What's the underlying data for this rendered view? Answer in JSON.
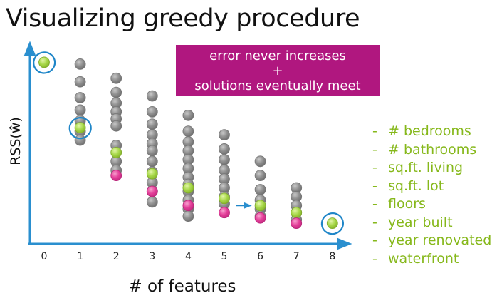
{
  "title": "Visualizing greedy procedure",
  "callout": {
    "line1": "error never increases",
    "line2": "+",
    "line3": "solutions eventually meet"
  },
  "features": [
    "# bedrooms",
    "# bathrooms",
    "sq.ft. living",
    "sq.ft. lot",
    "floors",
    "year built",
    "year renovated",
    "waterfront"
  ],
  "colors": {
    "gray_point": "#8c8c8c",
    "greedy_point": "#a8d84a",
    "best_subset_point": "#e4409a",
    "axis": "#2a8fcf",
    "callout_bg": "#b0177f",
    "feature_text": "#86b81b"
  },
  "chart_data": {
    "type": "scatter",
    "title": "",
    "xlabel": "# of features",
    "ylabel": "RSS(ŵ)",
    "x_ticks": [
      0,
      1,
      2,
      3,
      4,
      5,
      6,
      7,
      8
    ],
    "y_ticks_shown": false,
    "grid": false,
    "series": [
      {
        "role": "all_models",
        "points": [
          {
            "x": 1,
            "y": 96
          },
          {
            "x": 1,
            "y": 86
          },
          {
            "x": 1,
            "y": 77
          },
          {
            "x": 1,
            "y": 70
          },
          {
            "x": 1,
            "y": 64
          },
          {
            "x": 1,
            "y": 58
          },
          {
            "x": 1,
            "y": 53
          },
          {
            "x": 2,
            "y": 88
          },
          {
            "x": 2,
            "y": 80
          },
          {
            "x": 2,
            "y": 74
          },
          {
            "x": 2,
            "y": 69
          },
          {
            "x": 2,
            "y": 65
          },
          {
            "x": 2,
            "y": 61
          },
          {
            "x": 2,
            "y": 50
          },
          {
            "x": 2,
            "y": 41
          },
          {
            "x": 2,
            "y": 36
          },
          {
            "x": 3,
            "y": 78
          },
          {
            "x": 3,
            "y": 69
          },
          {
            "x": 3,
            "y": 62
          },
          {
            "x": 3,
            "y": 56
          },
          {
            "x": 3,
            "y": 51
          },
          {
            "x": 3,
            "y": 47
          },
          {
            "x": 3,
            "y": 41
          },
          {
            "x": 3,
            "y": 35
          },
          {
            "x": 3,
            "y": 29
          },
          {
            "x": 3,
            "y": 24
          },
          {
            "x": 3,
            "y": 18
          },
          {
            "x": 4,
            "y": 67
          },
          {
            "x": 4,
            "y": 58
          },
          {
            "x": 4,
            "y": 52
          },
          {
            "x": 4,
            "y": 47
          },
          {
            "x": 4,
            "y": 42
          },
          {
            "x": 4,
            "y": 37
          },
          {
            "x": 4,
            "y": 32
          },
          {
            "x": 4,
            "y": 28
          },
          {
            "x": 4,
            "y": 24
          },
          {
            "x": 4,
            "y": 19
          },
          {
            "x": 4,
            "y": 14
          },
          {
            "x": 4,
            "y": 10
          },
          {
            "x": 5,
            "y": 56
          },
          {
            "x": 5,
            "y": 48
          },
          {
            "x": 5,
            "y": 42
          },
          {
            "x": 5,
            "y": 36
          },
          {
            "x": 5,
            "y": 31
          },
          {
            "x": 5,
            "y": 26
          },
          {
            "x": 5,
            "y": 21
          },
          {
            "x": 5,
            "y": 17
          },
          {
            "x": 6,
            "y": 41
          },
          {
            "x": 6,
            "y": 33
          },
          {
            "x": 6,
            "y": 25
          },
          {
            "x": 6,
            "y": 19
          },
          {
            "x": 6,
            "y": 14
          },
          {
            "x": 6,
            "y": 10
          },
          {
            "x": 7,
            "y": 26
          },
          {
            "x": 7,
            "y": 21
          },
          {
            "x": 7,
            "y": 16
          },
          {
            "x": 7,
            "y": 12
          },
          {
            "x": 7,
            "y": 8
          }
        ]
      },
      {
        "role": "greedy_path",
        "points": [
          {
            "x": 0,
            "y": 97
          },
          {
            "x": 1,
            "y": 60
          },
          {
            "x": 2,
            "y": 46
          },
          {
            "x": 3,
            "y": 34
          },
          {
            "x": 4,
            "y": 26
          },
          {
            "x": 5,
            "y": 20
          },
          {
            "x": 6,
            "y": 16
          },
          {
            "x": 7,
            "y": 12
          },
          {
            "x": 8,
            "y": 6
          }
        ]
      },
      {
        "role": "best_subset",
        "points": [
          {
            "x": 2,
            "y": 33
          },
          {
            "x": 3,
            "y": 24
          },
          {
            "x": 4,
            "y": 16
          },
          {
            "x": 5,
            "y": 12
          },
          {
            "x": 6,
            "y": 9
          },
          {
            "x": 7,
            "y": 6
          }
        ]
      }
    ],
    "annotations": {
      "circled_points": [
        {
          "x": 0,
          "y": 97
        },
        {
          "x": 1,
          "y": 60
        },
        {
          "x": 8,
          "y": 6
        }
      ],
      "arrow": {
        "from_x": 5,
        "to_x": 6
      }
    }
  }
}
